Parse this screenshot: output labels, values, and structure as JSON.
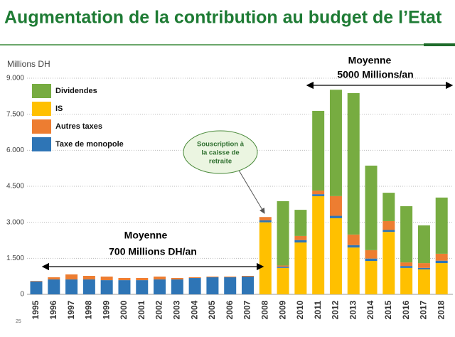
{
  "chart_data": {
    "type": "stacked_bar",
    "title": "Augmentation de la contribution au budget de l’Etat",
    "y_label": "Millions DH",
    "page_number": "25",
    "categories": [
      "1995",
      "1996",
      "1997",
      "1998",
      "1999",
      "2000",
      "2001",
      "2002",
      "2003",
      "2004",
      "2005",
      "2006",
      "2007",
      "2008",
      "2009",
      "2010",
      "2011",
      "2012",
      "2013",
      "2014",
      "2015",
      "2016",
      "2017",
      "2018"
    ],
    "series": [
      {
        "name": "Dividendes",
        "color": "#77ac41",
        "values": [
          0,
          0,
          0,
          0,
          0,
          0,
          0,
          0,
          0,
          0,
          0,
          0,
          0,
          0,
          2680,
          1090,
          3320,
          4430,
          5890,
          3520,
          1180,
          2340,
          1570,
          2340
        ]
      },
      {
        "name": "IS",
        "color": "#ffc000",
        "values": [
          0,
          0,
          0,
          0,
          0,
          0,
          0,
          0,
          0,
          0,
          0,
          0,
          0,
          3000,
          1100,
          2160,
          4090,
          3170,
          1950,
          1390,
          2600,
          1100,
          1040,
          1300
        ]
      },
      {
        "name": "Autres taxes",
        "color": "#ed7d31",
        "values": [
          20,
          90,
          210,
          150,
          150,
          90,
          90,
          120,
          60,
          30,
          30,
          30,
          30,
          140,
          50,
          170,
          150,
          820,
          440,
          350,
          370,
          150,
          200,
          290
        ]
      },
      {
        "name": "Taxe de monopole",
        "color": "#2e75b6",
        "values": [
          540,
          620,
          620,
          620,
          590,
          590,
          590,
          620,
          620,
          680,
          710,
          710,
          740,
          80,
          50,
          100,
          80,
          100,
          100,
          100,
          80,
          80,
          60,
          100
        ]
      }
    ],
    "ylim": [
      0,
      9000
    ],
    "yticks": [
      0,
      {
        "value": 1500,
        "label": "1.500"
      },
      {
        "value": 3000,
        "label": "3.000"
      },
      {
        "value": 4500,
        "label": "4.500"
      },
      {
        "value": 6000,
        "label": "6.000"
      },
      {
        "value": 7500,
        "label": "7.500"
      },
      {
        "value": 9000,
        "label": "9.000"
      }
    ],
    "grid": true,
    "annotations": {
      "early_average": [
        "Moyenne",
        "700 Millions DH/an"
      ],
      "recent_average": [
        "Moyenne",
        "5000 Millions/an"
      ],
      "bubble": [
        "Souscription à",
        "la caisse de",
        "retraite"
      ]
    }
  }
}
